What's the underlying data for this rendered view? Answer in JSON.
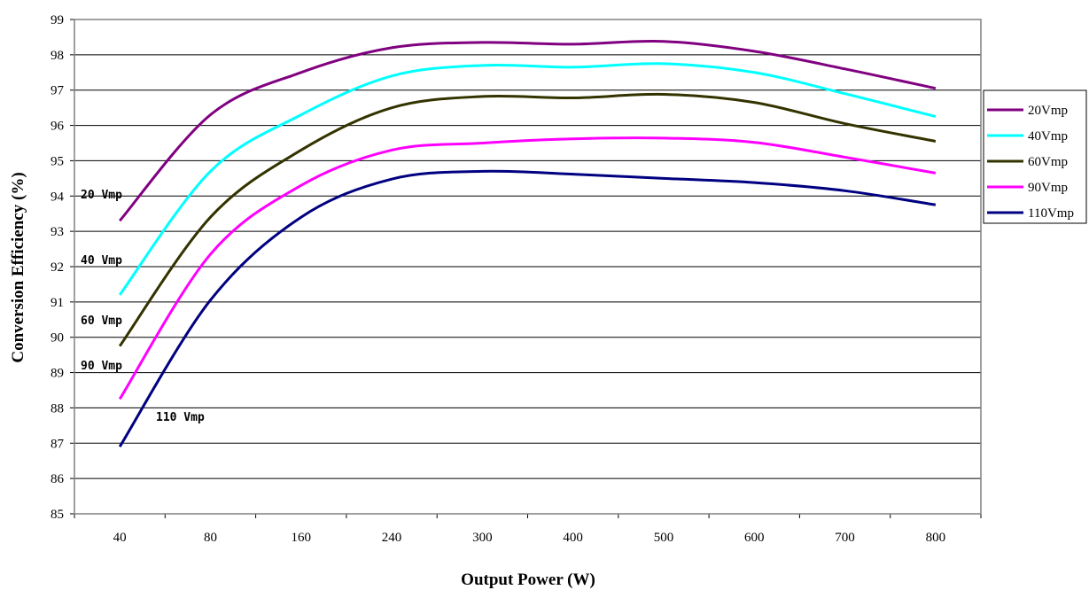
{
  "chart_data": {
    "type": "line",
    "xlabel": "Output Power (W)",
    "ylabel": "Conversion Efficiency (%)",
    "categories": [
      "40",
      "80",
      "160",
      "240",
      "300",
      "400",
      "500",
      "600",
      "700",
      "800"
    ],
    "ylim": [
      85,
      99
    ],
    "yticks": [
      85,
      86,
      87,
      88,
      89,
      90,
      91,
      92,
      93,
      94,
      95,
      96,
      97,
      98,
      99
    ],
    "grid": "horizontal",
    "legend_position": "right",
    "series": [
      {
        "name": "20Vmp",
        "color": "#800080",
        "values": [
          93.3,
          96.3,
          97.5,
          98.2,
          98.35,
          98.3,
          98.38,
          98.1,
          97.6,
          97.05
        ]
      },
      {
        "name": "40Vmp",
        "color": "#00FFFF",
        "values": [
          91.2,
          94.7,
          96.3,
          97.4,
          97.7,
          97.65,
          97.75,
          97.5,
          96.9,
          96.25
        ]
      },
      {
        "name": "60Vmp",
        "color": "#333300",
        "values": [
          89.75,
          93.4,
          95.3,
          96.5,
          96.82,
          96.78,
          96.88,
          96.65,
          96.05,
          95.55
        ]
      },
      {
        "name": "90Vmp",
        "color": "#FF00FF",
        "values": [
          88.25,
          92.35,
          94.3,
          95.3,
          95.5,
          95.62,
          95.64,
          95.52,
          95.1,
          94.65
        ]
      },
      {
        "name": "110Vmp",
        "color": "#000080",
        "values": [
          86.9,
          91.05,
          93.4,
          94.48,
          94.7,
          94.62,
          94.5,
          94.38,
          94.15,
          93.75
        ]
      }
    ],
    "annotations": [
      "20 Vmp",
      "40 Vmp",
      "60 Vmp",
      "90 Vmp",
      "110 Vmp"
    ]
  }
}
